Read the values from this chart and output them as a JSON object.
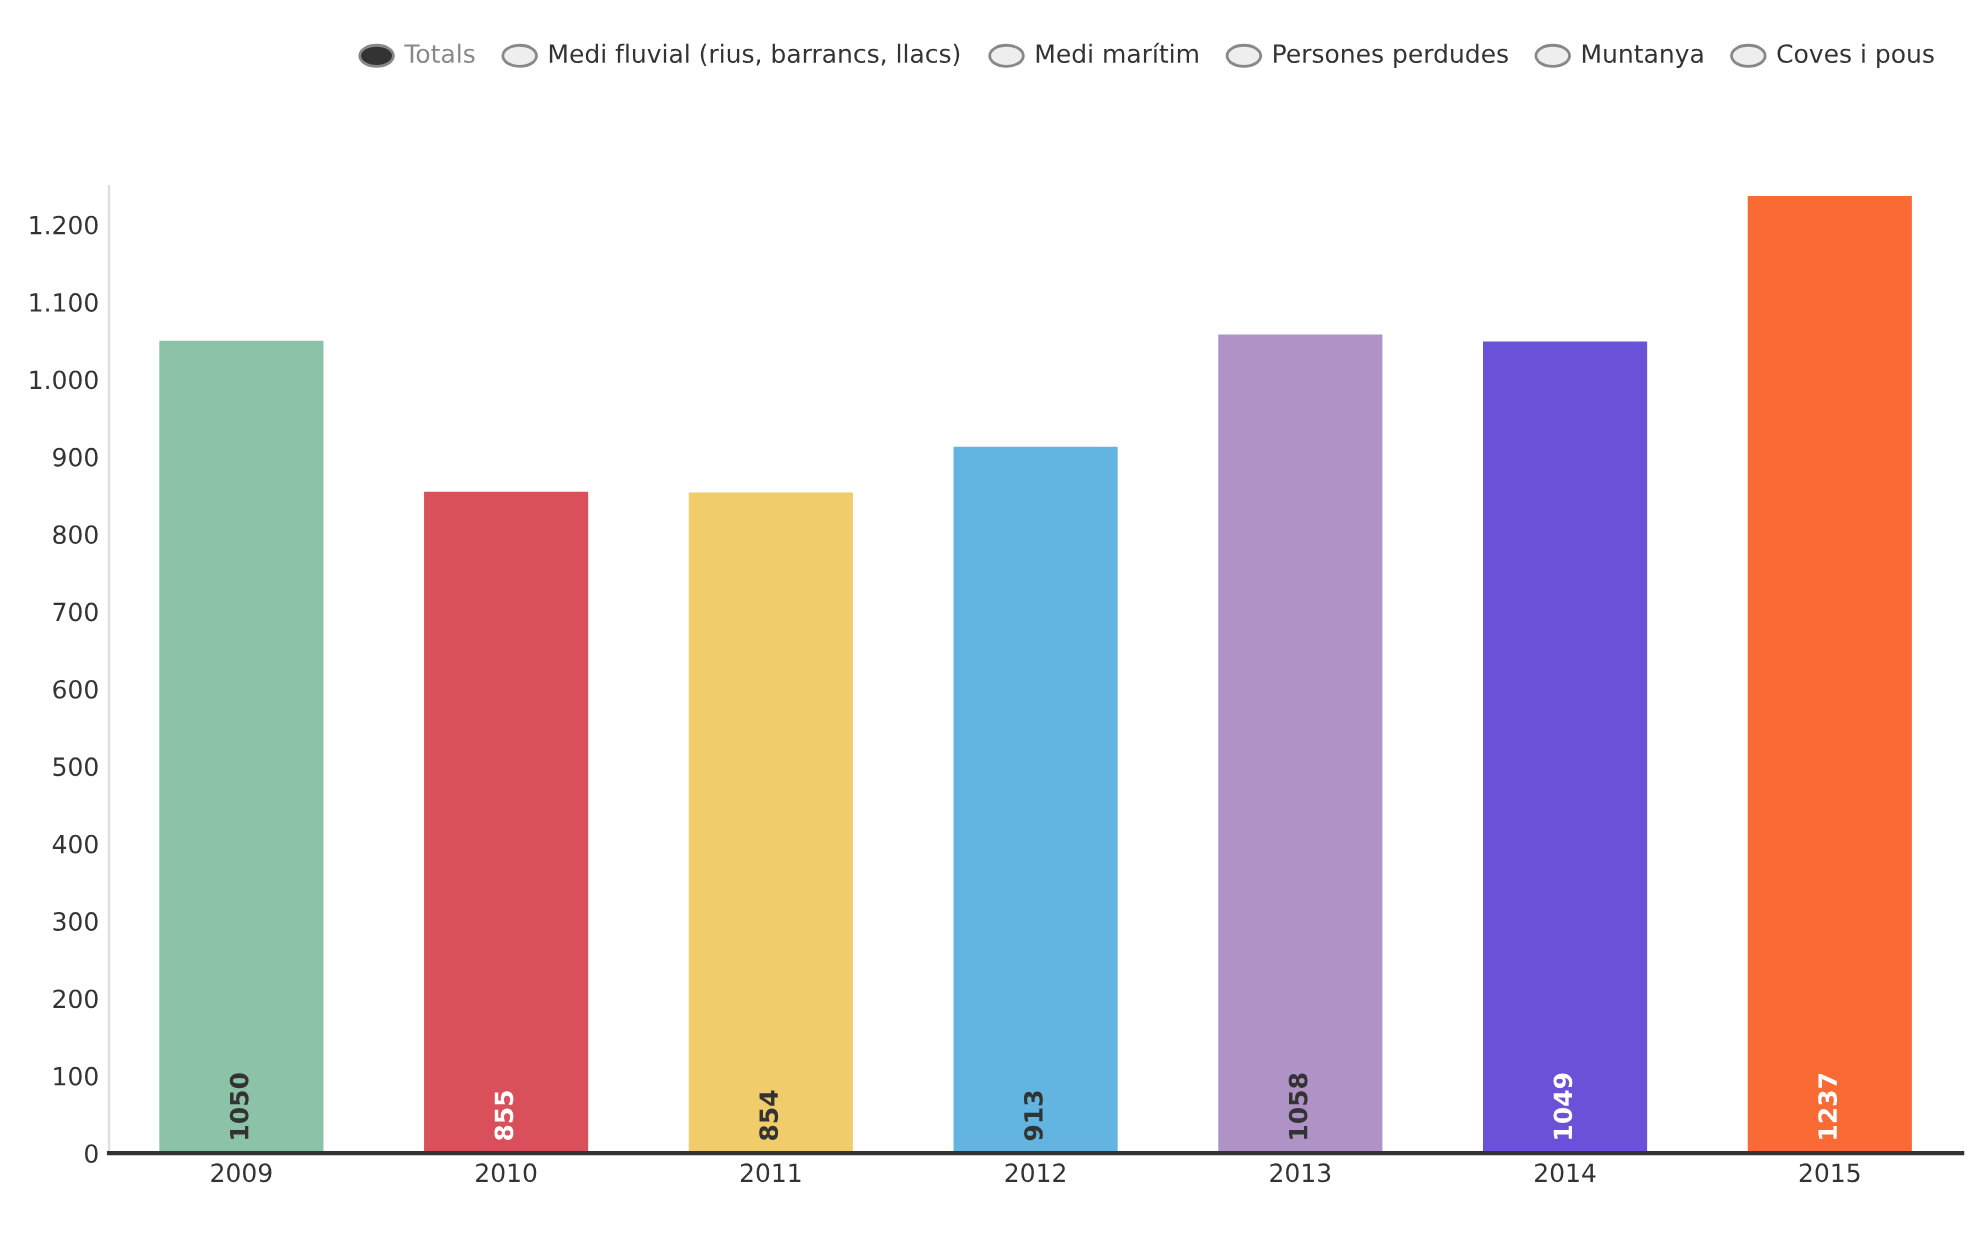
{
  "chart_data": {
    "type": "bar",
    "categories": [
      "2009",
      "2010",
      "2011",
      "2012",
      "2013",
      "2014",
      "2015"
    ],
    "values": [
      1050,
      855,
      854,
      913,
      1058,
      1049,
      1237
    ],
    "colors": [
      "#8cc3a8",
      "#d9505a",
      "#f0cc6a",
      "#62b4e1",
      "#af93c6",
      "#6a52d8",
      "#f96a35"
    ],
    "data_labels": true,
    "ylim": [
      0,
      1250
    ],
    "yticks": [
      0,
      100,
      200,
      300,
      400,
      500,
      600,
      700,
      800,
      900,
      {
        "value": 1000,
        "label": "1.000"
      },
      {
        "value": 1100,
        "label": "1.100"
      },
      {
        "value": 1200,
        "label": "1.200"
      }
    ],
    "grid": false,
    "annotations": [
      "Totals",
      "Medi fluvial (rius, barrancs, llacs)",
      "Medi marítim",
      "Persones perdudes",
      "Muntanya",
      "Coves i pous"
    ]
  }
}
